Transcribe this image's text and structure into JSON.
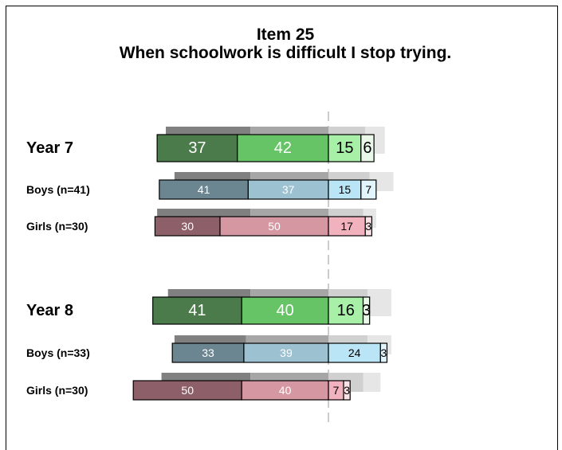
{
  "chart_data": {
    "type": "diverging_bar",
    "title": "Item 25",
    "subtitle": "When schoolwork is difficult I stop trying.",
    "series": [
      {
        "name": "Year 7",
        "values": [
          37,
          42,
          15,
          6
        ],
        "shadow": [
          39,
          36,
          17,
          9
        ],
        "colors": [
          "#4b7b4b",
          "#66c466",
          "#a8f0a8",
          "#eaf8ea"
        ]
      },
      {
        "name": "Boys (n=41)",
        "values": [
          41,
          37,
          15,
          7
        ],
        "shadow": [
          35,
          36,
          19,
          11
        ],
        "colors": [
          "#6b8691",
          "#9cc1d0",
          "#b9e5f6",
          "#e2f4fc"
        ]
      },
      {
        "name": "Girls (n=30)",
        "values": [
          30,
          50,
          17,
          3
        ],
        "shadow": [
          43,
          36,
          16,
          6
        ],
        "colors": [
          "#8d5f69",
          "#d597a1",
          "#f1b1bd",
          "#fbe2e7"
        ]
      },
      {
        "name": "Year 8",
        "values": [
          41,
          40,
          16,
          3
        ],
        "shadow": [
          38,
          36,
          18,
          11
        ],
        "colors": [
          "#4b7b4b",
          "#66c466",
          "#a8f0a8",
          "#eaf8ea"
        ]
      },
      {
        "name": "Boys (n=33)",
        "values": [
          33,
          39,
          24,
          3
        ],
        "shadow": [
          33,
          38,
          18,
          11
        ],
        "colors": [
          "#6b8691",
          "#9cc1d0",
          "#b9e5f6",
          "#e2f4fc"
        ]
      },
      {
        "name": "Girls (n=30)",
        "values": [
          50,
          40,
          7,
          3
        ],
        "shadow": [
          41,
          36,
          16,
          8
        ],
        "colors": [
          "#8d5f69",
          "#d597a1",
          "#f1b1bd",
          "#fbe2e7"
        ]
      }
    ]
  }
}
